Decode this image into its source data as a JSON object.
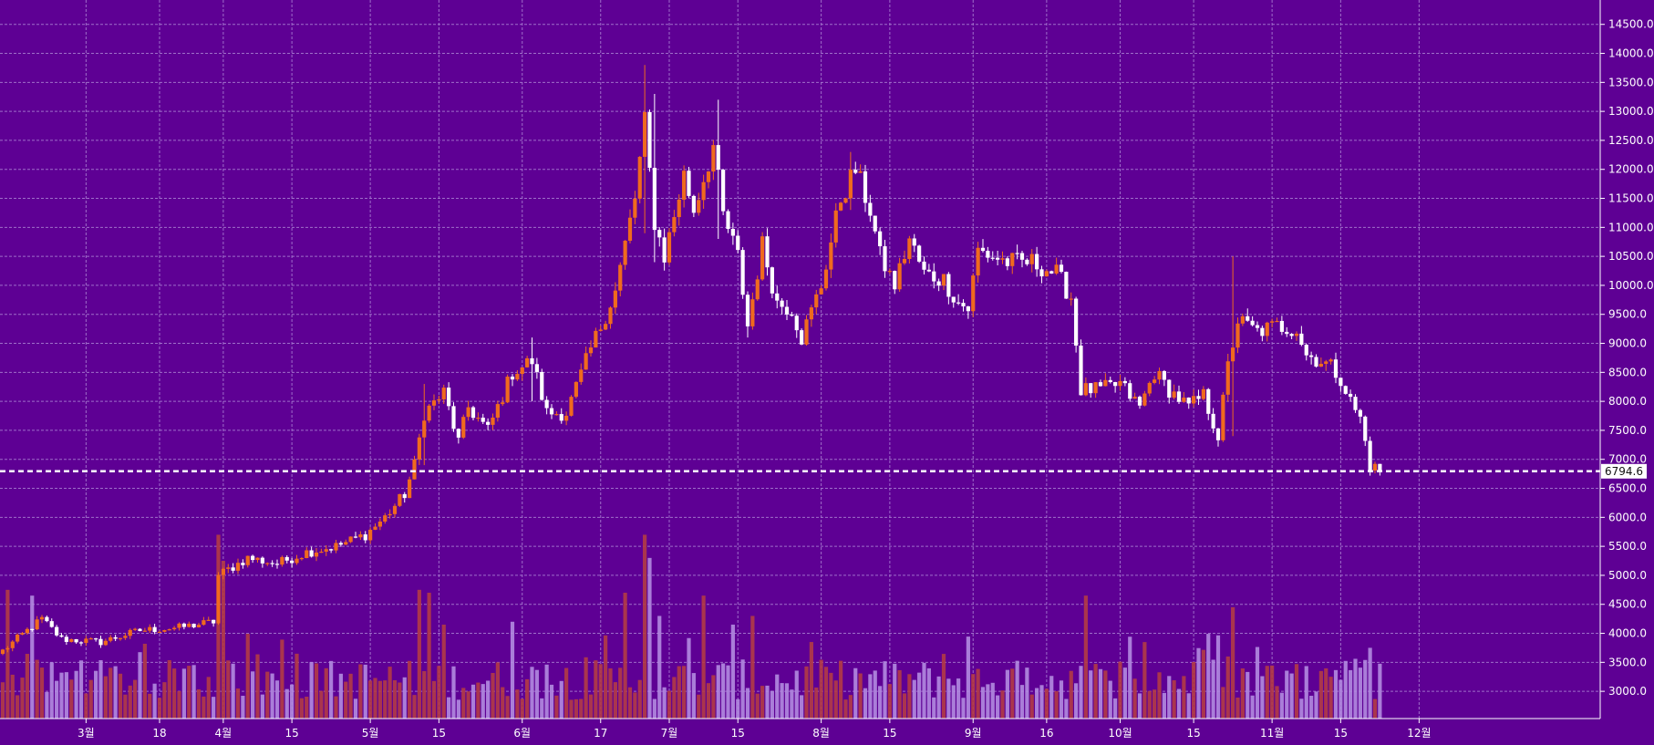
{
  "colors": {
    "background": "#5e0094",
    "grid": "#a77ad0",
    "up_candle": "#f06a1e",
    "down_candle": "#ffffff",
    "volume_up": "#b23b45",
    "volume_down": "#b28be0",
    "axis_text": "#ffffff",
    "last_price_line": "#ffffff"
  },
  "chart_data": {
    "type": "candlestick",
    "title": "",
    "xlabel": "",
    "ylabel": "",
    "ylim": [
      2700,
      14800
    ],
    "grid": true,
    "y_ticks": [
      "3000.0",
      "3500.0",
      "4000.0",
      "4500.0",
      "5000.0",
      "5500.0",
      "6000.0",
      "6500.0",
      "7000.0",
      "7500.0",
      "8000.0",
      "8500.0",
      "9000.0",
      "9500.0",
      "10000.0",
      "10500.0",
      "11000.0",
      "11500.0",
      "12000.0",
      "12500.0",
      "13000.0",
      "13500.0",
      "14000.0",
      "14500.0"
    ],
    "x_ticks": [
      {
        "label": "3월",
        "day": 17
      },
      {
        "label": "18",
        "day": 32
      },
      {
        "label": "4월",
        "day": 45
      },
      {
        "label": "15",
        "day": 59
      },
      {
        "label": "5월",
        "day": 75
      },
      {
        "label": "15",
        "day": 89
      },
      {
        "label": "6월",
        "day": 106
      },
      {
        "label": "17",
        "day": 122
      },
      {
        "label": "7월",
        "day": 136
      },
      {
        "label": "15",
        "day": 150
      },
      {
        "label": "8월",
        "day": 167
      },
      {
        "label": "15",
        "day": 181
      },
      {
        "label": "9월",
        "day": 198
      },
      {
        "label": "16",
        "day": 213
      },
      {
        "label": "10월",
        "day": 228
      },
      {
        "label": "15",
        "day": 243
      },
      {
        "label": "11월",
        "day": 259
      },
      {
        "label": "15",
        "day": 273
      },
      {
        "label": "12월",
        "day": 289
      }
    ],
    "last_price": 6794.6,
    "last_price_label": "6794.6",
    "anchors": [
      [
        0,
        3700
      ],
      [
        5,
        4050
      ],
      [
        8,
        4250
      ],
      [
        12,
        3900
      ],
      [
        20,
        3850
      ],
      [
        28,
        4050
      ],
      [
        36,
        4100
      ],
      [
        43,
        4200
      ],
      [
        44,
        5000
      ],
      [
        50,
        5300
      ],
      [
        56,
        5200
      ],
      [
        62,
        5400
      ],
      [
        68,
        5500
      ],
      [
        74,
        5700
      ],
      [
        78,
        6000
      ],
      [
        82,
        6400
      ],
      [
        84,
        6900
      ],
      [
        86,
        7800
      ],
      [
        90,
        8150
      ],
      [
        93,
        7300
      ],
      [
        95,
        7900
      ],
      [
        99,
        7500
      ],
      [
        104,
        8500
      ],
      [
        108,
        8700
      ],
      [
        111,
        7800
      ],
      [
        115,
        7800
      ],
      [
        120,
        8900
      ],
      [
        125,
        9900
      ],
      [
        129,
        11500
      ],
      [
        131,
        12800
      ],
      [
        133,
        11100
      ],
      [
        135,
        10500
      ],
      [
        139,
        11900
      ],
      [
        141,
        11300
      ],
      [
        145,
        12400
      ],
      [
        147,
        11200
      ],
      [
        150,
        10500
      ],
      [
        152,
        9300
      ],
      [
        155,
        10700
      ],
      [
        158,
        9700
      ],
      [
        161,
        9600
      ],
      [
        163,
        9100
      ],
      [
        167,
        10000
      ],
      [
        171,
        11500
      ],
      [
        174,
        12000
      ],
      [
        177,
        11300
      ],
      [
        179,
        10500
      ],
      [
        182,
        10000
      ],
      [
        185,
        10800
      ],
      [
        188,
        10200
      ],
      [
        192,
        10100
      ],
      [
        195,
        9700
      ],
      [
        197,
        9600
      ],
      [
        199,
        10600
      ],
      [
        205,
        10400
      ],
      [
        210,
        10400
      ],
      [
        215,
        10200
      ],
      [
        218,
        9800
      ],
      [
        220,
        8200
      ],
      [
        224,
        8200
      ],
      [
        228,
        8300
      ],
      [
        232,
        7900
      ],
      [
        235,
        8500
      ],
      [
        238,
        8200
      ],
      [
        242,
        7900
      ],
      [
        245,
        8100
      ],
      [
        248,
        7400
      ],
      [
        250,
        8600
      ],
      [
        252,
        9400
      ],
      [
        256,
        9200
      ],
      [
        260,
        9300
      ],
      [
        264,
        9250
      ],
      [
        266,
        8800
      ],
      [
        269,
        8700
      ],
      [
        271,
        8600
      ],
      [
        273,
        8400
      ],
      [
        275,
        8000
      ],
      [
        277,
        7700
      ],
      [
        279,
        6900
      ],
      [
        281,
        6794.6
      ]
    ],
    "spikes": [
      {
        "day": 131,
        "high": 13800,
        "low": 10900
      },
      {
        "day": 146,
        "high": 13200,
        "low": 10800
      },
      {
        "day": 133,
        "high": 13300,
        "low": 10400
      },
      {
        "day": 152,
        "high": 9800,
        "low": 9100
      },
      {
        "day": 251,
        "high": 10500,
        "low": 7400
      },
      {
        "day": 173,
        "high": 12300,
        "low": 11300
      },
      {
        "day": 86,
        "high": 8300,
        "low": 6900
      },
      {
        "day": 108,
        "high": 9100,
        "low": 8000
      }
    ],
    "volume": {
      "base": 2750,
      "spikes": [
        {
          "day": 1,
          "value": 4750
        },
        {
          "day": 6,
          "value": 4650
        },
        {
          "day": 44,
          "value": 5700
        },
        {
          "day": 45,
          "value": 5250
        },
        {
          "day": 85,
          "value": 4750
        },
        {
          "day": 87,
          "value": 4700
        },
        {
          "day": 90,
          "value": 4150
        },
        {
          "day": 104,
          "value": 4200
        },
        {
          "day": 131,
          "value": 5700
        },
        {
          "day": 132,
          "value": 5300
        },
        {
          "day": 127,
          "value": 4700
        },
        {
          "day": 134,
          "value": 4300
        },
        {
          "day": 143,
          "value": 4650
        },
        {
          "day": 149,
          "value": 4150
        },
        {
          "day": 153,
          "value": 4300
        },
        {
          "day": 221,
          "value": 4650
        },
        {
          "day": 251,
          "value": 4450
        },
        {
          "day": 250,
          "value": 3600
        },
        {
          "day": 279,
          "value": 3750
        }
      ]
    }
  }
}
